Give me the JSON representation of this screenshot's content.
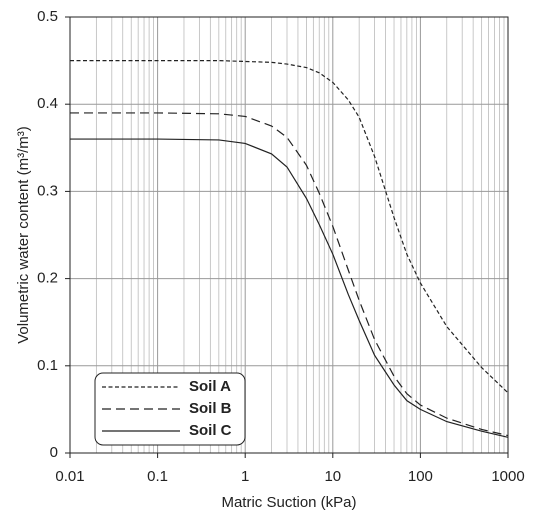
{
  "chart_data": {
    "type": "line",
    "xlabel": "Matric Suction (kPa)",
    "ylabel": "Volumetric water content (m³/m³)",
    "x": [
      0.01,
      0.1,
      0.5,
      1,
      2,
      3,
      5,
      7,
      10,
      15,
      20,
      30,
      50,
      70,
      100,
      200,
      500,
      1000
    ],
    "series": [
      {
        "name": "Soil A",
        "color": "#222222",
        "dash": "4,2.5",
        "values": [
          0.45,
          0.45,
          0.45,
          0.449,
          0.448,
          0.446,
          0.442,
          0.436,
          0.425,
          0.405,
          0.385,
          0.34,
          0.27,
          0.228,
          0.195,
          0.145,
          0.098,
          0.069
        ]
      },
      {
        "name": "Soil B",
        "color": "#222222",
        "dash": "9,5",
        "values": [
          0.39,
          0.39,
          0.389,
          0.386,
          0.375,
          0.362,
          0.33,
          0.298,
          0.26,
          0.21,
          0.175,
          0.13,
          0.088,
          0.068,
          0.055,
          0.04,
          0.027,
          0.02
        ]
      },
      {
        "name": "Soil C",
        "color": "#222222",
        "dash": "none",
        "values": [
          0.36,
          0.36,
          0.359,
          0.355,
          0.343,
          0.328,
          0.292,
          0.262,
          0.228,
          0.182,
          0.152,
          0.112,
          0.078,
          0.06,
          0.05,
          0.036,
          0.025,
          0.018
        ]
      }
    ],
    "xlim": [
      0.01,
      1000
    ],
    "xticks": [
      0.01,
      0.1,
      1,
      10,
      100,
      1000
    ],
    "xscale": "log",
    "ylim": [
      0,
      0.5
    ],
    "yticks": [
      0,
      0.1,
      0.2,
      0.3,
      0.4,
      0.5
    ],
    "grid": true,
    "minor_grid": true,
    "legend": "lower left"
  }
}
